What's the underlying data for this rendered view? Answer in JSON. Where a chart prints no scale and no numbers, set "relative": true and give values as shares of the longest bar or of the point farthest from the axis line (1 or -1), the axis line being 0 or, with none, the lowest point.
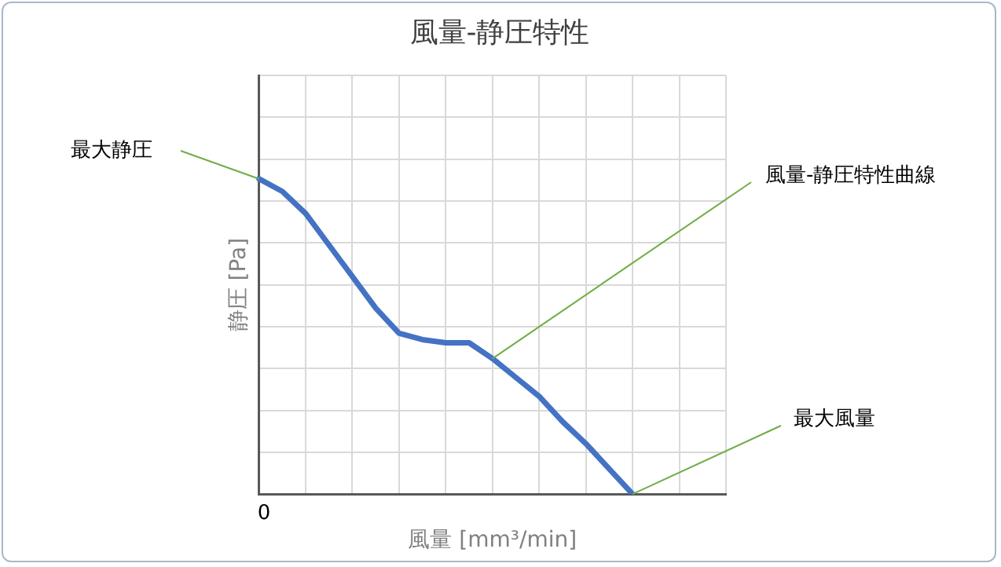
{
  "chart_data": {
    "type": "line",
    "title": "風量-静圧特性",
    "xlabel": "風量 [mm³/min]",
    "ylabel": "静圧 [Pa]",
    "relative": true,
    "categories": [
      null,
      null,
      null,
      null,
      null,
      null,
      null,
      null,
      null,
      null,
      null,
      null,
      null,
      null,
      null,
      null,
      null,
      null,
      null,
      null,
      null
    ],
    "grid": true,
    "legend": false,
    "marker": "none",
    "line_style": "solid",
    "series": [
      {
        "color": "#4472c4",
        "values": [
          1,
          0.96,
          0.89,
          0.79,
          0.69,
          0.59,
          0.51,
          0.49,
          0.48,
          0.48,
          0.43,
          0.37,
          0.31,
          0.23,
          0.16,
          0.08,
          0,
          null,
          null,
          null,
          null
        ]
      }
    ],
    "annotations": [
      "最大静圧",
      "風量-静圧特性曲線",
      "最大風量",
      "0"
    ]
  }
}
